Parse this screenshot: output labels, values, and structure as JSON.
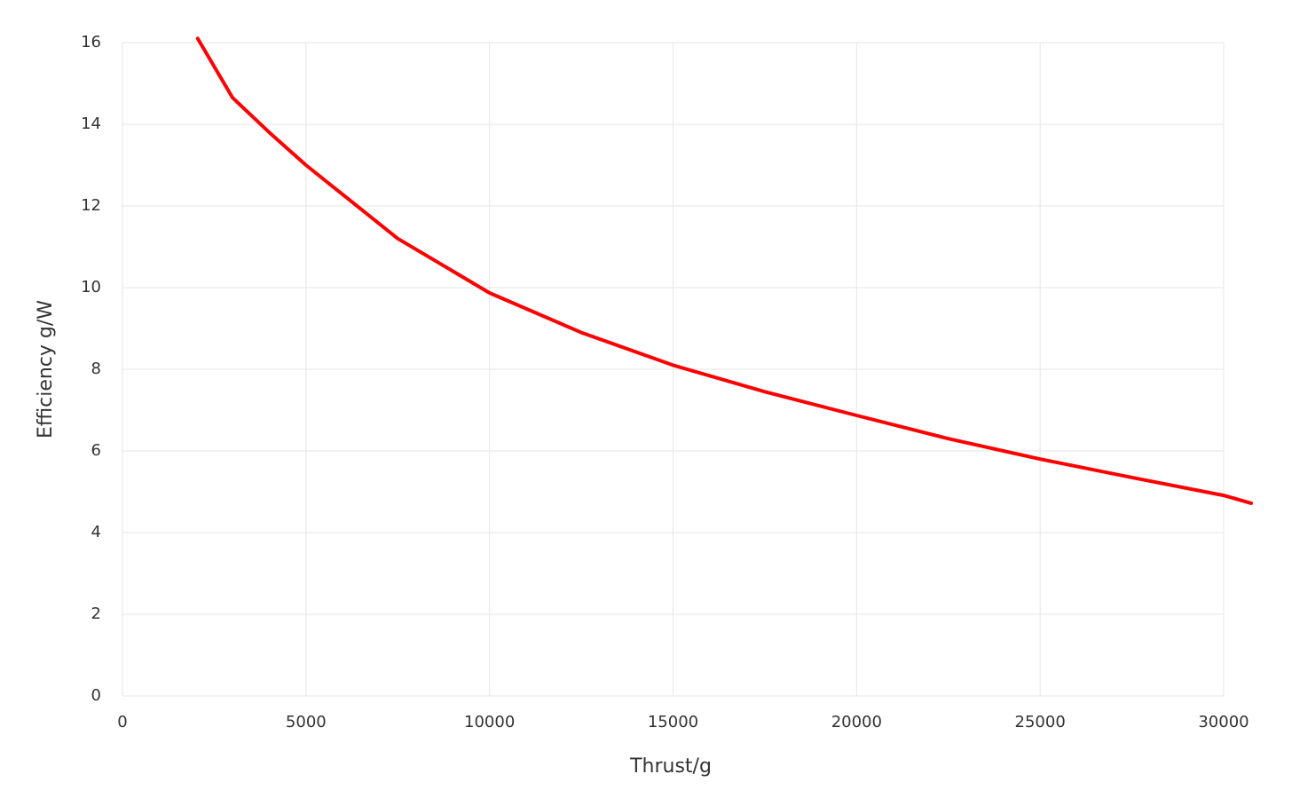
{
  "chart_data": {
    "type": "line",
    "x_label": "Thrust/g",
    "y_label": "Efficiency g/W",
    "x": [
      2050,
      3000,
      4000,
      5000,
      7500,
      10000,
      12500,
      15000,
      17500,
      20000,
      22500,
      25000,
      27500,
      30000,
      30750
    ],
    "values": [
      16.1,
      14.65,
      13.8,
      13.0,
      11.2,
      9.87,
      8.9,
      8.1,
      7.45,
      6.87,
      6.3,
      5.8,
      5.35,
      4.91,
      4.72
    ],
    "color": "#ff0000",
    "xlim": [
      0,
      30000
    ],
    "xticks": [
      0,
      5000,
      10000,
      15000,
      20000,
      25000,
      30000
    ],
    "ylim": [
      0,
      16
    ],
    "yticks": [
      0,
      2,
      4,
      6,
      8,
      10,
      12,
      14,
      16
    ],
    "grid": true
  }
}
